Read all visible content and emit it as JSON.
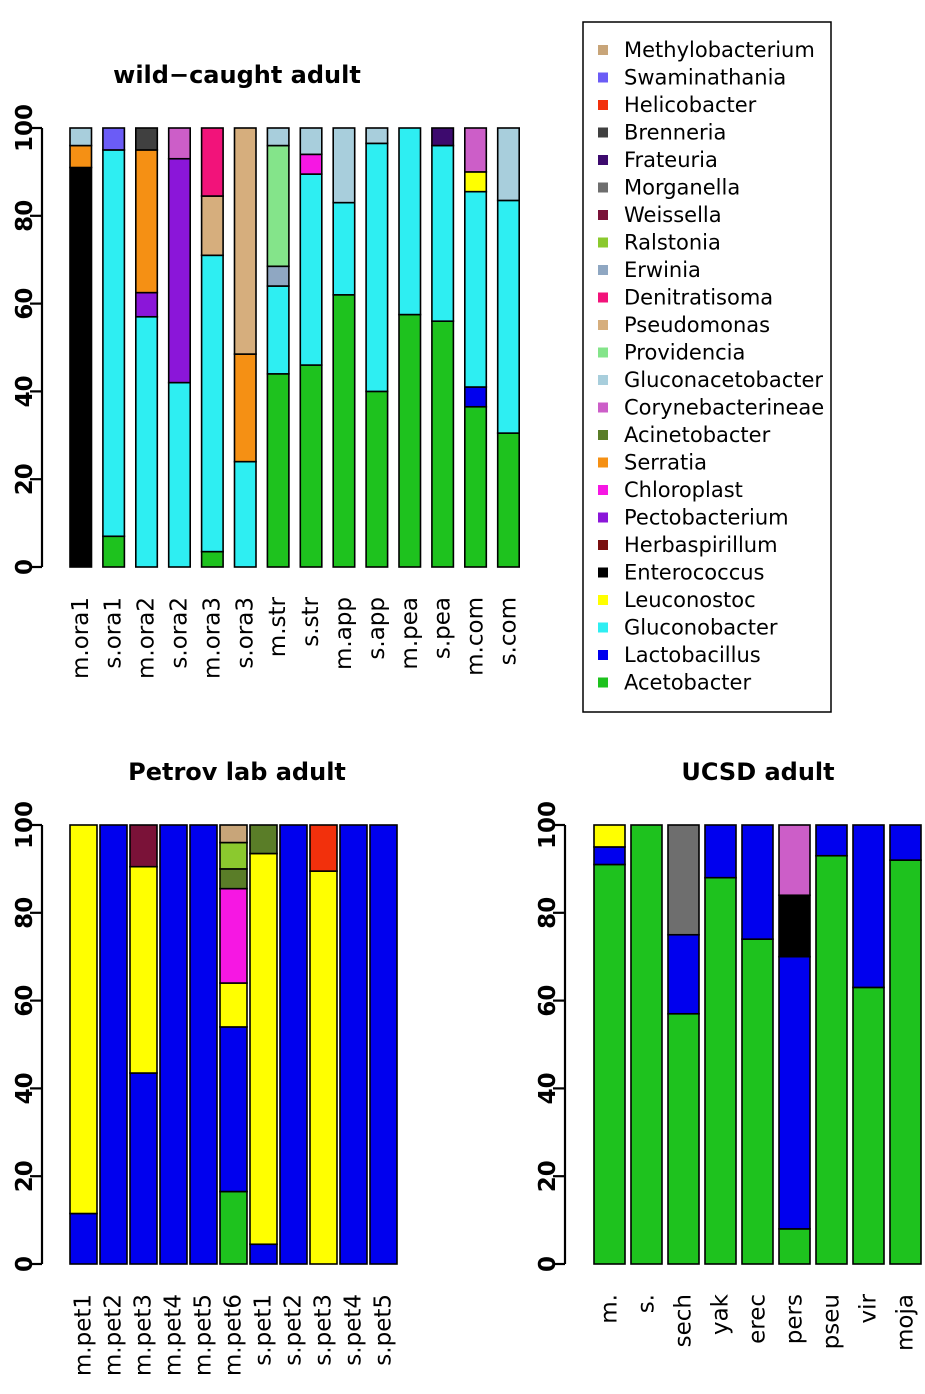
{
  "chart_data": [
    {
      "type": "bar",
      "stacked": true,
      "title": "wild−caught adult",
      "categories": [
        "m.ora1",
        "s.ora1",
        "m.ora2",
        "s.ora2",
        "m.ora3",
        "s.ora3",
        "m.str",
        "s.str",
        "m.app",
        "s.app",
        "m.pea",
        "s.pea",
        "m.com",
        "s.com"
      ],
      "ylim": [
        0,
        100
      ],
      "yticks": [
        "0",
        "20",
        "40",
        "60",
        "80",
        "100"
      ],
      "series": [
        {
          "name": "Acetobacter",
          "values": [
            0,
            7,
            0,
            0,
            3.5,
            0,
            44,
            46,
            62,
            40,
            57.5,
            56,
            36.5,
            30.5
          ]
        },
        {
          "name": "Lactobacillus",
          "values": [
            0,
            0,
            0,
            0,
            0,
            0,
            0,
            0,
            0,
            0,
            0,
            0,
            4.5,
            0
          ]
        },
        {
          "name": "Gluconobacter",
          "values": [
            0,
            88,
            57,
            42,
            67.5,
            24,
            20,
            43.5,
            21,
            56.5,
            42.5,
            40,
            44.5,
            53
          ]
        },
        {
          "name": "Enterococcus",
          "values": [
            91,
            0,
            0,
            0,
            0,
            0,
            0,
            0,
            0,
            0,
            0,
            0,
            0,
            0
          ]
        },
        {
          "name": "Leuconostoc",
          "values": [
            0,
            0,
            0,
            0,
            0,
            0,
            0,
            0,
            0,
            0,
            0,
            0,
            4.5,
            0
          ]
        },
        {
          "name": "Pectobacterium",
          "values": [
            0,
            0,
            5.5,
            51,
            0,
            0,
            0,
            0,
            0,
            0,
            0,
            0,
            0,
            0
          ]
        },
        {
          "name": "Serratia",
          "values": [
            5,
            0,
            32.5,
            0,
            0,
            24.5,
            0,
            0,
            0,
            0,
            0,
            0,
            0,
            0
          ]
        },
        {
          "name": "Chloroplast",
          "values": [
            0,
            0,
            0,
            0,
            0,
            0,
            0,
            4.5,
            0,
            0,
            0,
            0,
            0,
            0
          ]
        },
        {
          "name": "Erwinia",
          "values": [
            0,
            0,
            0,
            0,
            0,
            0,
            4.5,
            0,
            0,
            0,
            0,
            0,
            0,
            0
          ]
        },
        {
          "name": "Providencia",
          "values": [
            0,
            0,
            0,
            0,
            0,
            0,
            27.5,
            0,
            0,
            0,
            0,
            0,
            0,
            0
          ]
        },
        {
          "name": "Pseudomonas",
          "values": [
            0,
            0,
            0,
            0,
            13.5,
            51.5,
            0,
            0,
            0,
            0,
            0,
            0,
            0,
            0
          ]
        },
        {
          "name": "Denitratisoma",
          "values": [
            0,
            0,
            0,
            0,
            15.5,
            0,
            0,
            0,
            0,
            0,
            0,
            0,
            0,
            0
          ]
        },
        {
          "name": "Corynebacterineae",
          "values": [
            0,
            0,
            0,
            7,
            0,
            0,
            0,
            0,
            0,
            0,
            0,
            0,
            10,
            0
          ]
        },
        {
          "name": "Brenneria",
          "values": [
            0,
            0,
            5,
            0,
            0,
            0,
            0,
            0,
            0,
            0,
            0,
            0,
            0,
            0
          ]
        },
        {
          "name": "Frateuria",
          "values": [
            0,
            0,
            0,
            0,
            0,
            0,
            0,
            0,
            0,
            0,
            0,
            4,
            0,
            0
          ]
        },
        {
          "name": "Swaminathania",
          "values": [
            0,
            5,
            0,
            0,
            0,
            0,
            0,
            0,
            0,
            0,
            0,
            0,
            0,
            0
          ]
        },
        {
          "name": "Gluconacetobacter",
          "values": [
            4,
            0,
            0,
            0,
            0,
            0,
            4,
            6,
            17,
            3.5,
            0,
            0,
            0,
            16.5
          ]
        }
      ]
    },
    {
      "type": "bar",
      "stacked": true,
      "title": "Petrov lab adult",
      "categories": [
        "m.pet1",
        "m.pet2",
        "m.pet3",
        "m.pet4",
        "m.pet5",
        "m.pet6",
        "s.pet1",
        "s.pet2",
        "s.pet3",
        "s.pet4",
        "s.pet5"
      ],
      "ylim": [
        0,
        100
      ],
      "yticks": [
        "0",
        "20",
        "40",
        "60",
        "80",
        "100"
      ],
      "series": [
        {
          "name": "Acetobacter",
          "values": [
            0,
            0,
            0,
            0,
            0,
            16.5,
            0,
            0,
            0,
            0,
            0
          ]
        },
        {
          "name": "Lactobacillus",
          "values": [
            11.5,
            100,
            43.5,
            100,
            100,
            37.5,
            4.5,
            100,
            0,
            100,
            100
          ]
        },
        {
          "name": "Leuconostoc",
          "values": [
            88.5,
            0,
            47,
            0,
            0,
            10,
            89,
            0,
            89.5,
            0,
            0
          ]
        },
        {
          "name": "Chloroplast",
          "values": [
            0,
            0,
            0,
            0,
            0,
            21.5,
            0,
            0,
            0,
            0,
            0
          ]
        },
        {
          "name": "Acinetobacter",
          "values": [
            0,
            0,
            0,
            0,
            0,
            4.5,
            6.5,
            0,
            0,
            0,
            0
          ]
        },
        {
          "name": "Ralstonia",
          "values": [
            0,
            0,
            0,
            0,
            0,
            6,
            0,
            0,
            0,
            0,
            0
          ]
        },
        {
          "name": "Weissella",
          "values": [
            0,
            0,
            9.5,
            0,
            0,
            0,
            0,
            0,
            0,
            0,
            0
          ]
        },
        {
          "name": "Helicobacter",
          "values": [
            0,
            0,
            0,
            0,
            0,
            0,
            0,
            0,
            10.5,
            0,
            0
          ]
        },
        {
          "name": "Methylobacterium",
          "values": [
            0,
            0,
            0,
            0,
            0,
            4,
            0,
            0,
            0,
            0,
            0
          ]
        }
      ]
    },
    {
      "type": "bar",
      "stacked": true,
      "title": "UCSD adult",
      "categories": [
        "m.",
        "s.",
        "sech",
        "yak",
        "erec",
        "pers",
        "pseu",
        "vir",
        "moja"
      ],
      "ylim": [
        0,
        100
      ],
      "yticks": [
        "0",
        "20",
        "40",
        "60",
        "80",
        "100"
      ],
      "series": [
        {
          "name": "Acetobacter",
          "values": [
            91,
            100,
            57,
            88,
            74,
            8,
            93,
            63,
            92
          ]
        },
        {
          "name": "Lactobacillus",
          "values": [
            4,
            0,
            18,
            12,
            26,
            62,
            7,
            37,
            8
          ]
        },
        {
          "name": "Leuconostoc",
          "values": [
            5,
            0,
            0,
            0,
            0,
            0,
            0,
            0,
            0
          ]
        },
        {
          "name": "Enterococcus",
          "values": [
            0,
            0,
            0,
            0,
            0,
            14,
            0,
            0,
            0
          ]
        },
        {
          "name": "Morganella",
          "values": [
            0,
            0,
            25,
            0,
            0,
            0,
            0,
            0,
            0
          ]
        },
        {
          "name": "Corynebacterineae",
          "values": [
            0,
            0,
            0,
            0,
            0,
            16,
            0,
            0,
            0
          ]
        }
      ]
    }
  ],
  "legend": {
    "placement": "top-right",
    "items": [
      {
        "label": "Methylobacterium",
        "color": "#c8a579"
      },
      {
        "label": "Swaminathania",
        "color": "#6b5cf6"
      },
      {
        "label": "Helicobacter",
        "color": "#f2300c"
      },
      {
        "label": "Brenneria",
        "color": "#404040"
      },
      {
        "label": "Frateuria",
        "color": "#3d0a6e"
      },
      {
        "label": "Morganella",
        "color": "#6e6e6e"
      },
      {
        "label": "Weissella",
        "color": "#7a1238"
      },
      {
        "label": "Ralstonia",
        "color": "#8bc92e"
      },
      {
        "label": "Erwinia",
        "color": "#8fa7c2"
      },
      {
        "label": "Denitratisoma",
        "color": "#f2137a"
      },
      {
        "label": "Pseudomonas",
        "color": "#d6ae7d"
      },
      {
        "label": "Providencia",
        "color": "#84e48a"
      },
      {
        "label": "Gluconacetobacter",
        "color": "#a8cedc"
      },
      {
        "label": "Corynebacterineae",
        "color": "#cc5ec8"
      },
      {
        "label": "Acinetobacter",
        "color": "#5a7d28"
      },
      {
        "label": "Serratia",
        "color": "#f59014"
      },
      {
        "label": "Chloroplast",
        "color": "#f617e3"
      },
      {
        "label": "Pectobacterium",
        "color": "#8b16d9"
      },
      {
        "label": "Herbaspirillum",
        "color": "#7a0f0f"
      },
      {
        "label": "Enterococcus",
        "color": "#000000"
      },
      {
        "label": "Leuconostoc",
        "color": "#ffff00"
      },
      {
        "label": "Gluconobacter",
        "color": "#2eeef2"
      },
      {
        "label": "Lactobacillus",
        "color": "#0000ee"
      },
      {
        "label": "Acetobacter",
        "color": "#1ec21e"
      }
    ]
  }
}
